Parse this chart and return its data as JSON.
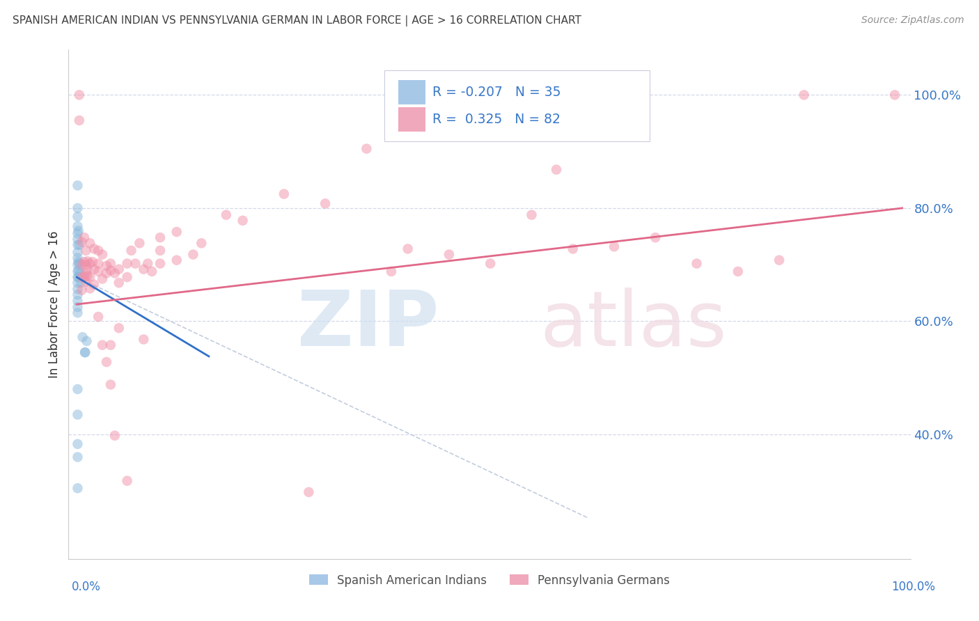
{
  "title": "SPANISH AMERICAN INDIAN VS PENNSYLVANIA GERMAN IN LABOR FORCE | AGE > 16 CORRELATION CHART",
  "source": "Source: ZipAtlas.com",
  "ylabel": "In Labor Force | Age > 16",
  "right_ytick_vals": [
    0.4,
    0.6,
    0.8,
    1.0
  ],
  "right_ytick_labels": [
    "40.0%",
    "60.0%",
    "80.0%",
    "100.0%"
  ],
  "legend_label_bottom": [
    "Spanish American Indians",
    "Pennsylvania Germans"
  ],
  "blue_scatter_color": "#8ab8dc",
  "pink_scatter_color": "#f090a8",
  "blue_line_color": "#3070c8",
  "pink_line_color": "#e06888",
  "dashed_line_color": "#b8c4d8",
  "watermark_zip_color": "#d0e0f0",
  "watermark_atlas_color": "#f0d8e0",
  "blue_points": [
    [
      0.001,
      0.84
    ],
    [
      0.001,
      0.8
    ],
    [
      0.001,
      0.785
    ],
    [
      0.001,
      0.768
    ],
    [
      0.001,
      0.755
    ],
    [
      0.001,
      0.745
    ],
    [
      0.001,
      0.735
    ],
    [
      0.001,
      0.722
    ],
    [
      0.001,
      0.712
    ],
    [
      0.001,
      0.7
    ],
    [
      0.001,
      0.688
    ],
    [
      0.001,
      0.678
    ],
    [
      0.001,
      0.668
    ],
    [
      0.001,
      0.657
    ],
    [
      0.001,
      0.647
    ],
    [
      0.001,
      0.636
    ],
    [
      0.001,
      0.625
    ],
    [
      0.001,
      0.615
    ],
    [
      0.002,
      0.76
    ],
    [
      0.002,
      0.705
    ],
    [
      0.002,
      0.69
    ],
    [
      0.002,
      0.678
    ],
    [
      0.003,
      0.735
    ],
    [
      0.003,
      0.702
    ],
    [
      0.004,
      0.685
    ],
    [
      0.005,
      0.668
    ],
    [
      0.007,
      0.572
    ],
    [
      0.01,
      0.545
    ],
    [
      0.012,
      0.565
    ],
    [
      0.001,
      0.48
    ],
    [
      0.001,
      0.435
    ],
    [
      0.001,
      0.383
    ],
    [
      0.001,
      0.36
    ],
    [
      0.001,
      0.305
    ],
    [
      0.01,
      0.545
    ]
  ],
  "pink_points": [
    [
      0.003,
      1.0
    ],
    [
      0.003,
      0.955
    ],
    [
      0.006,
      0.74
    ],
    [
      0.006,
      0.7
    ],
    [
      0.006,
      0.678
    ],
    [
      0.006,
      0.655
    ],
    [
      0.009,
      0.748
    ],
    [
      0.009,
      0.705
    ],
    [
      0.009,
      0.678
    ],
    [
      0.011,
      0.725
    ],
    [
      0.011,
      0.7
    ],
    [
      0.011,
      0.685
    ],
    [
      0.011,
      0.67
    ],
    [
      0.013,
      0.706
    ],
    [
      0.013,
      0.692
    ],
    [
      0.013,
      0.68
    ],
    [
      0.016,
      0.738
    ],
    [
      0.016,
      0.702
    ],
    [
      0.016,
      0.678
    ],
    [
      0.016,
      0.658
    ],
    [
      0.019,
      0.705
    ],
    [
      0.021,
      0.728
    ],
    [
      0.021,
      0.692
    ],
    [
      0.021,
      0.665
    ],
    [
      0.026,
      0.725
    ],
    [
      0.026,
      0.702
    ],
    [
      0.026,
      0.688
    ],
    [
      0.026,
      0.608
    ],
    [
      0.031,
      0.718
    ],
    [
      0.031,
      0.675
    ],
    [
      0.031,
      0.558
    ],
    [
      0.036,
      0.698
    ],
    [
      0.036,
      0.685
    ],
    [
      0.036,
      0.528
    ],
    [
      0.041,
      0.702
    ],
    [
      0.041,
      0.69
    ],
    [
      0.041,
      0.558
    ],
    [
      0.041,
      0.488
    ],
    [
      0.046,
      0.685
    ],
    [
      0.046,
      0.398
    ],
    [
      0.051,
      0.692
    ],
    [
      0.051,
      0.668
    ],
    [
      0.051,
      0.588
    ],
    [
      0.061,
      0.702
    ],
    [
      0.061,
      0.678
    ],
    [
      0.061,
      0.318
    ],
    [
      0.066,
      0.725
    ],
    [
      0.071,
      0.702
    ],
    [
      0.076,
      0.738
    ],
    [
      0.081,
      0.692
    ],
    [
      0.081,
      0.568
    ],
    [
      0.086,
      0.702
    ],
    [
      0.091,
      0.688
    ],
    [
      0.101,
      0.748
    ],
    [
      0.101,
      0.725
    ],
    [
      0.101,
      0.702
    ],
    [
      0.121,
      0.758
    ],
    [
      0.121,
      0.708
    ],
    [
      0.141,
      0.718
    ],
    [
      0.151,
      0.738
    ],
    [
      0.181,
      0.788
    ],
    [
      0.201,
      0.778
    ],
    [
      0.251,
      0.825
    ],
    [
      0.281,
      0.298
    ],
    [
      0.301,
      0.808
    ],
    [
      0.351,
      0.905
    ],
    [
      0.381,
      0.688
    ],
    [
      0.401,
      0.728
    ],
    [
      0.451,
      0.718
    ],
    [
      0.501,
      0.702
    ],
    [
      0.551,
      0.788
    ],
    [
      0.581,
      0.868
    ],
    [
      0.601,
      0.728
    ],
    [
      0.651,
      0.732
    ],
    [
      0.701,
      0.748
    ],
    [
      0.751,
      0.702
    ],
    [
      0.801,
      0.688
    ],
    [
      0.851,
      0.708
    ],
    [
      0.881,
      1.0
    ],
    [
      0.991,
      1.0
    ]
  ],
  "blue_line": [
    [
      0.0,
      0.678
    ],
    [
      0.16,
      0.538
    ]
  ],
  "pink_line": [
    [
      0.0,
      0.63
    ],
    [
      1.0,
      0.8
    ]
  ],
  "dashed_line": [
    [
      0.0,
      0.678
    ],
    [
      0.62,
      0.252
    ]
  ],
  "xlim": [
    -0.01,
    1.01
  ],
  "ylim": [
    0.18,
    1.08
  ],
  "grid_color": "#d4d8e8",
  "background_color": "#ffffff",
  "title_color": "#404040",
  "source_color": "#909090",
  "axis_label_color": "#3878c8",
  "dot_size": 110,
  "dot_alpha": 0.5,
  "legend_blue_color": "#a8c8e8",
  "legend_pink_color": "#f0a8bc"
}
